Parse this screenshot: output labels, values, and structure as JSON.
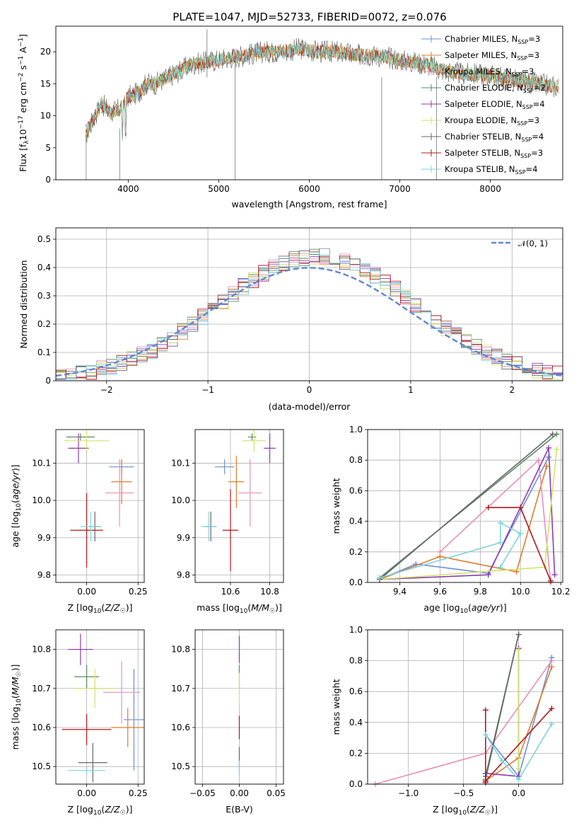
{
  "title": "PLATE=1047, MJD=52733, FIBERID=0072, z=0.076",
  "colors": {
    "Chabrier MILES": "#6b8fd8",
    "Salpeter MILES": "#e07b2c",
    "Kroupa MILES": "#e88fb8",
    "Chabrier ELODIE": "#5a8a62",
    "Salpeter ELODIE": "#8e3bb0",
    "Kroupa ELODIE": "#d4e26a",
    "Chabrier STELIB": "#666666",
    "Salpeter STELIB": "#b0181e",
    "Kroupa STELIB": "#7fd4dc"
  },
  "chart_data": [
    {
      "id": "spectrum",
      "type": "line",
      "xlabel": "wavelength [Angstrom, rest frame]",
      "ylabel": "Flux [f_λ 10^-17 erg cm^-2 s^-1 A^-1]",
      "xlim": [
        3200,
        8800
      ],
      "ylim": [
        0,
        24
      ],
      "xticks": [
        4000,
        5000,
        6000,
        7000,
        8000
      ],
      "yticks": [
        0,
        5,
        10,
        15,
        20
      ],
      "legend": [
        {
          "name": "Chabrier MILES",
          "label": "Chabrier MILES, N_SSP=3"
        },
        {
          "name": "Salpeter MILES",
          "label": "Salpeter MILES, N_SSP=3"
        },
        {
          "name": "Kroupa MILES",
          "label": "Kroupa MILES, N_SSP=3"
        },
        {
          "name": "Chabrier ELODIE",
          "label": "Chabrier ELODIE, N_SSP=2"
        },
        {
          "name": "Salpeter ELODIE",
          "label": "Salpeter ELODIE, N_SSP=4"
        },
        {
          "name": "Kroupa ELODIE",
          "label": "Kroupa ELODIE, N_SSP=3"
        },
        {
          "name": "Chabrier STELIB",
          "label": "Chabrier STELIB, N_SSP=4"
        },
        {
          "name": "Salpeter STELIB",
          "label": "Salpeter STELIB, N_SSP=3"
        },
        {
          "name": "Kroupa STELIB",
          "label": "Kroupa STELIB, N_SSP=4"
        }
      ],
      "legend_loc": "upper right",
      "envelope": [
        [
          3530,
          7
        ],
        [
          3600,
          9
        ],
        [
          3700,
          12
        ],
        [
          3800,
          10.5
        ],
        [
          3900,
          11
        ],
        [
          4000,
          13
        ],
        [
          4100,
          13.5
        ],
        [
          4200,
          15
        ],
        [
          4300,
          15
        ],
        [
          4500,
          16.5
        ],
        [
          4700,
          18
        ],
        [
          4900,
          18.5
        ],
        [
          5100,
          19
        ],
        [
          5300,
          19.5
        ],
        [
          5500,
          20
        ],
        [
          5700,
          20
        ],
        [
          5900,
          20.5
        ],
        [
          6100,
          20
        ],
        [
          6300,
          20
        ],
        [
          6500,
          19.5
        ],
        [
          6700,
          19.5
        ],
        [
          6900,
          19
        ],
        [
          7100,
          18.5
        ],
        [
          7300,
          18
        ],
        [
          7500,
          17
        ],
        [
          7700,
          16.5
        ],
        [
          7900,
          16.5
        ],
        [
          8100,
          16
        ],
        [
          8300,
          15.5
        ],
        [
          8500,
          15
        ],
        [
          8750,
          14.5
        ]
      ]
    },
    {
      "id": "residuals",
      "type": "line",
      "xlabel": "(data-model)/error",
      "ylabel": "Normed distribution",
      "xlim": [
        -2.5,
        2.5
      ],
      "ylim": [
        0,
        0.54
      ],
      "xticks": [
        -2,
        -1,
        0,
        1,
        2
      ],
      "yticks": [
        0,
        0.1,
        0.2,
        0.3,
        0.4,
        0.5
      ],
      "legend": [
        {
          "name": "N(0,1)",
          "label": "𝒩(0, 1)"
        }
      ],
      "legend_loc": "upper right",
      "grid": true
    },
    {
      "id": "age_vs_Z",
      "type": "scatter",
      "xlabel": "Z [log10(Z/Z☉)]",
      "ylabel": "age [log10(age/yr)]",
      "xlim": [
        -0.15,
        0.28
      ],
      "ylim": [
        9.78,
        10.19
      ],
      "xticks": [
        0,
        0.25
      ],
      "xticklabels": [
        "0.00",
        "0.25"
      ],
      "yticks": [
        9.8,
        9.9,
        10.0,
        10.1
      ],
      "yticklabels": [
        "9.8",
        "9.9",
        "10.0",
        "10.1"
      ],
      "series": [
        {
          "name": "Chabrier MILES",
          "x": 0.17,
          "y": 10.09,
          "xerr": 0.06,
          "yerr": 0.02
        },
        {
          "name": "Salpeter MILES",
          "x": 0.17,
          "y": 10.05,
          "xerr": 0.05,
          "yerr": 0.06
        },
        {
          "name": "Kroupa MILES",
          "x": 0.16,
          "y": 10.02,
          "xerr": 0.07,
          "yerr": 0.09
        },
        {
          "name": "Chabrier ELODIE",
          "x": -0.03,
          "y": 10.17,
          "xerr": 0.07,
          "yerr": 0.01
        },
        {
          "name": "Salpeter ELODIE",
          "x": -0.04,
          "y": 10.14,
          "xerr": 0.05,
          "yerr": 0.04
        },
        {
          "name": "Kroupa ELODIE",
          "x": 0.0,
          "y": 10.16,
          "xerr": 0.11,
          "yerr": 0.03
        },
        {
          "name": "Chabrier STELIB",
          "x": 0.04,
          "y": 9.93,
          "xerr": 0.03,
          "yerr": 0.04
        },
        {
          "name": "Salpeter STELIB",
          "x": 0.0,
          "y": 9.92,
          "xerr": 0.08,
          "yerr": 0.1
        },
        {
          "name": "Kroupa STELIB",
          "x": 0.02,
          "y": 9.93,
          "xerr": 0.05,
          "yerr": 0.04
        }
      ]
    },
    {
      "id": "age_vs_mass",
      "type": "scatter",
      "xlabel": "mass [log10(M/M☉)]",
      "xlim": [
        10.42,
        10.87
      ],
      "ylim": [
        9.78,
        10.19
      ],
      "xticks": [
        10.6,
        10.8
      ],
      "xticklabels": [
        "10.6",
        "10.8"
      ],
      "yticks": [
        9.8,
        9.9,
        10.0,
        10.1
      ],
      "yticklabels": [
        "9.8",
        "9.9",
        "10.0",
        "10.1"
      ],
      "series": [
        {
          "name": "Chabrier MILES",
          "x": 10.57,
          "y": 10.09,
          "xerr": 0.05,
          "yerr": 0.02
        },
        {
          "name": "Salpeter MILES",
          "x": 10.63,
          "y": 10.05,
          "xerr": 0.04,
          "yerr": 0.07
        },
        {
          "name": "Kroupa MILES",
          "x": 10.7,
          "y": 10.02,
          "xerr": 0.06,
          "yerr": 0.09
        },
        {
          "name": "Chabrier ELODIE",
          "x": 10.71,
          "y": 10.17,
          "xerr": 0.02,
          "yerr": 0.01
        },
        {
          "name": "Salpeter ELODIE",
          "x": 10.8,
          "y": 10.14,
          "xerr": 0.03,
          "yerr": 0.04
        },
        {
          "name": "Kroupa ELODIE",
          "x": 10.72,
          "y": 10.16,
          "xerr": 0.06,
          "yerr": 0.03
        },
        {
          "name": "Chabrier STELIB",
          "x": 10.5,
          "y": 9.93,
          "xerr": 0.03,
          "yerr": 0.04
        },
        {
          "name": "Salpeter STELIB",
          "x": 10.6,
          "y": 9.92,
          "xerr": 0.04,
          "yerr": 0.11
        },
        {
          "name": "Kroupa STELIB",
          "x": 10.49,
          "y": 9.93,
          "xerr": 0.04,
          "yerr": 0.04
        }
      ]
    },
    {
      "id": "weight_vs_age",
      "type": "line",
      "xlabel": "age [log10(age/yr)]",
      "ylabel": "mass weight",
      "xlim": [
        9.24,
        10.21
      ],
      "ylim": [
        0,
        1
      ],
      "xticks": [
        9.4,
        9.6,
        9.8,
        10.0,
        10.2
      ],
      "xticklabels": [
        "9.4",
        "9.6",
        "9.8",
        "10.0",
        "10.2"
      ],
      "yticks": [
        0,
        0.2,
        0.4,
        0.6,
        0.8,
        1.0
      ],
      "yticklabels": [
        "0.0",
        "0.2",
        "0.4",
        "0.6",
        "0.8",
        "1.0"
      ],
      "series": [
        {
          "name": "Chabrier MILES",
          "x": [
            9.3,
            9.48,
            9.84,
            10.14
          ],
          "y": [
            0.02,
            0.12,
            0.06,
            0.82
          ]
        },
        {
          "name": "Salpeter MILES",
          "x": [
            9.3,
            9.6,
            9.98,
            10.13
          ],
          "y": [
            0.02,
            0.17,
            0.07,
            0.76
          ]
        },
        {
          "name": "Kroupa MILES",
          "x": [
            9.6,
            10.09,
            10.15
          ],
          "y": [
            0.2,
            0.8,
            0.0
          ]
        },
        {
          "name": "Chabrier ELODIE",
          "x": [
            9.3,
            10.18
          ],
          "y": [
            0.03,
            0.97
          ]
        },
        {
          "name": "Salpeter ELODIE",
          "x": [
            9.3,
            9.84,
            10.14,
            10.17
          ],
          "y": [
            0.02,
            0.05,
            0.88,
            0.05
          ]
        },
        {
          "name": "Kroupa ELODIE",
          "x": [
            9.3,
            10.12,
            10.18
          ],
          "y": [
            0.02,
            0.1,
            0.87
          ]
        },
        {
          "name": "Chabrier STELIB",
          "x": [
            9.3,
            10.16
          ],
          "y": [
            0.02,
            0.97
          ]
        },
        {
          "name": "Salpeter STELIB",
          "x": [
            9.84,
            10.0,
            10.15
          ],
          "y": [
            0.49,
            0.49,
            0.01
          ]
        },
        {
          "name": "Kroupa STELIB",
          "x": [
            9.3,
            9.9,
            9.9,
            10.0,
            9.9
          ],
          "y": [
            0.03,
            0.26,
            0.39,
            0.32,
            0.1
          ]
        }
      ],
      "grid": true
    },
    {
      "id": "mass_vs_Z",
      "type": "scatter",
      "xlabel": "Z [log10(Z/Z☉)]",
      "ylabel": "mass [log10(M/M☉)]",
      "xlim": [
        -0.15,
        0.28
      ],
      "ylim": [
        10.455,
        10.85
      ],
      "xticks": [
        0,
        0.25
      ],
      "xticklabels": [
        "0.00",
        "0.25"
      ],
      "yticks": [
        10.5,
        10.6,
        10.7,
        10.8
      ],
      "yticklabels": [
        "10.5",
        "10.6",
        "10.7",
        "10.8"
      ],
      "series": [
        {
          "name": "Chabrier MILES",
          "x": 0.23,
          "y": 10.62,
          "xerr": 0.05,
          "yerr": 0.13
        },
        {
          "name": "Salpeter MILES",
          "x": 0.2,
          "y": 10.6,
          "xerr": 0.08,
          "yerr": 0.05
        },
        {
          "name": "Kroupa MILES",
          "x": 0.17,
          "y": 10.69,
          "xerr": 0.09,
          "yerr": 0.08
        },
        {
          "name": "Chabrier ELODIE",
          "x": 0.0,
          "y": 10.73,
          "xerr": 0.06,
          "yerr": 0.03
        },
        {
          "name": "Salpeter ELODIE",
          "x": -0.03,
          "y": 10.8,
          "xerr": 0.06,
          "yerr": 0.04
        },
        {
          "name": "Kroupa ELODIE",
          "x": 0.04,
          "y": 10.7,
          "xerr": 0.1,
          "yerr": 0.05
        },
        {
          "name": "Chabrier STELIB",
          "x": 0.03,
          "y": 10.51,
          "xerr": 0.07,
          "yerr": 0.05
        },
        {
          "name": "Salpeter STELIB",
          "x": 0.0,
          "y": 10.595,
          "xerr": 0.12,
          "yerr": 0.04
        },
        {
          "name": "Kroupa STELIB",
          "x": 0.0,
          "y": 10.49,
          "xerr": 0.09,
          "yerr": 0.01
        }
      ]
    },
    {
      "id": "mass_vs_EBV",
      "type": "scatter",
      "xlabel": "E(B-V)",
      "xlim": [
        -0.06,
        0.06
      ],
      "ylim": [
        10.455,
        10.85
      ],
      "xticks": [
        -0.05,
        0,
        0.05
      ],
      "xticklabels": [
        "−0.05",
        "0.00",
        "0.05"
      ],
      "yticks": [
        10.5,
        10.6,
        10.7,
        10.8
      ],
      "yticklabels": [
        "10.5",
        "10.6",
        "10.7",
        "10.8"
      ],
      "series": [
        {
          "name": "Salpeter ELODIE",
          "x": 0.0,
          "y": 10.8,
          "xerr": 0.0,
          "yerr": 0.035
        },
        {
          "name": "Chabrier ELODIE",
          "x": 0.0,
          "y": 10.73,
          "xerr": 0.0,
          "yerr": 0.03
        },
        {
          "name": "Kroupa ELODIE",
          "x": 0.0,
          "y": 10.7,
          "xerr": 0.0,
          "yerr": 0.04
        },
        {
          "name": "Salpeter STELIB",
          "x": 0.0,
          "y": 10.6,
          "xerr": 0.0,
          "yerr": 0.03
        },
        {
          "name": "Chabrier STELIB",
          "x": 0.0,
          "y": 10.52,
          "xerr": 0.0,
          "yerr": 0.03
        },
        {
          "name": "Kroupa STELIB",
          "x": 0.0,
          "y": 10.495,
          "xerr": 0.0,
          "yerr": 0.02
        }
      ]
    },
    {
      "id": "weight_vs_Z",
      "type": "line",
      "xlabel": "Z [log10(Z/Z☉)]",
      "ylabel": "mass weight",
      "xlim": [
        -1.37,
        0.4
      ],
      "ylim": [
        0,
        1
      ],
      "xticks": [
        -1.0,
        -0.5,
        0.0
      ],
      "xticklabels": [
        "−1.0",
        "−0.5",
        "0.0"
      ],
      "yticks": [
        0,
        0.2,
        0.4,
        0.6,
        0.8,
        1.0
      ],
      "yticklabels": [
        "0.0",
        "0.2",
        "0.4",
        "0.6",
        "0.8",
        "1.0"
      ],
      "series": [
        {
          "name": "Chabrier MILES",
          "x": [
            -0.3,
            0.0,
            0.3
          ],
          "y": [
            0.32,
            0.05,
            0.82
          ]
        },
        {
          "name": "Salpeter MILES",
          "x": [
            -0.3,
            0.0,
            0.3
          ],
          "y": [
            0.02,
            0.17,
            0.76
          ]
        },
        {
          "name": "Kroupa MILES",
          "x": [
            -1.3,
            -0.3,
            0.3
          ],
          "y": [
            0.0,
            0.2,
            0.8
          ]
        },
        {
          "name": "Chabrier ELODIE",
          "x": [
            -0.3,
            0.0
          ],
          "y": [
            0.03,
            0.97
          ]
        },
        {
          "name": "Salpeter ELODIE",
          "x": [
            -0.3,
            0.0,
            0.0
          ],
          "y": [
            0.07,
            0.05,
            0.88
          ]
        },
        {
          "name": "Kroupa ELODIE",
          "x": [
            0.0,
            0.0
          ],
          "y": [
            0.1,
            0.87
          ]
        },
        {
          "name": "Chabrier STELIB",
          "x": [
            -0.3,
            0.0
          ],
          "y": [
            0.05,
            0.97
          ]
        },
        {
          "name": "Salpeter STELIB",
          "x": [
            -0.3,
            -0.3,
            -0.3,
            0.3
          ],
          "y": [
            0.48,
            0.01,
            0.02,
            0.49
          ]
        },
        {
          "name": "Kroupa STELIB",
          "x": [
            -0.3,
            -0.15,
            0.0,
            0.3
          ],
          "y": [
            0.32,
            0.15,
            0.03,
            0.39
          ]
        }
      ],
      "grid": true
    }
  ]
}
